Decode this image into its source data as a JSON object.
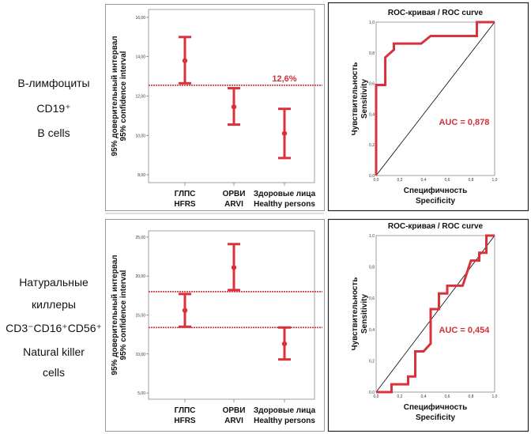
{
  "row_labels": [
    {
      "lines": [
        "В-лимфоциты",
        "CD19⁺",
        "B cells"
      ]
    },
    {
      "lines": [
        "Натуральные",
        "киллеры",
        "CD3⁻CD16⁺CD56⁺",
        "Natural killer",
        "cells"
      ]
    }
  ],
  "colors": {
    "series": "#d9323b",
    "diagonal": "#000000",
    "frame": "#888888"
  },
  "chart_data": [
    {
      "type": "errorbar",
      "ylabel": [
        "95% доверительный интервал",
        "95% confidence interval"
      ],
      "categories": [
        [
          "ГЛПС",
          "HFRS"
        ],
        [
          "ОРВИ",
          "ARVI"
        ],
        [
          "Здоровые лица",
          "Healthy persons"
        ]
      ],
      "ylim": [
        7.6,
        16.4
      ],
      "yticks": [
        8,
        10,
        12,
        14,
        16
      ],
      "ytick_labels": [
        "8,00",
        "10,00",
        "12,00",
        "14,00",
        "16,00"
      ],
      "series": [
        {
          "mean": 13.8,
          "lower": 12.65,
          "upper": 15.0
        },
        {
          "mean": 11.45,
          "lower": 10.55,
          "upper": 12.4
        },
        {
          "mean": 10.1,
          "lower": 8.85,
          "upper": 11.35
        }
      ],
      "reference_lines": [
        12.55
      ],
      "annotation": "12,6%"
    },
    {
      "type": "roc",
      "title": "ROC-кривая / ROC curve",
      "xlabel": [
        "Специфичность",
        "Specificity"
      ],
      "ylabel": [
        "Чувствительность",
        "Sensitivity"
      ],
      "xlim": [
        0,
        1
      ],
      "ylim": [
        0,
        1
      ],
      "tick_labels": [
        "0,0",
        "0,2",
        "0,4",
        "0,6",
        "0,8",
        "1,0"
      ],
      "points": [
        [
          0,
          0
        ],
        [
          0,
          0.59
        ],
        [
          0.077,
          0.59
        ],
        [
          0.077,
          0.77
        ],
        [
          0.15,
          0.82
        ],
        [
          0.15,
          0.86
        ],
        [
          0.38,
          0.86
        ],
        [
          0.46,
          0.91
        ],
        [
          0.85,
          0.91
        ],
        [
          0.85,
          1
        ],
        [
          1,
          1
        ]
      ],
      "auc_label": "AUC = 0,878"
    },
    {
      "type": "errorbar",
      "ylabel": [
        "95% доверительный интервал",
        "95% confidence interval"
      ],
      "categories": [
        [
          "ГЛПС",
          "HFRS"
        ],
        [
          "ОРВИ",
          "ARVI"
        ],
        [
          "Здоровые лица",
          "Healthy persons"
        ]
      ],
      "ylim": [
        4.2,
        25.8
      ],
      "yticks": [
        5,
        10,
        15,
        20,
        25
      ],
      "ytick_labels": [
        "5,00",
        "10,00",
        "15,00",
        "20,00",
        "25,00"
      ],
      "series": [
        {
          "mean": 15.6,
          "lower": 13.5,
          "upper": 17.7
        },
        {
          "mean": 21.1,
          "lower": 18.2,
          "upper": 24.1
        },
        {
          "mean": 11.3,
          "lower": 9.3,
          "upper": 13.4
        }
      ],
      "reference_lines": [
        18.0,
        13.4
      ],
      "annotation": ""
    },
    {
      "type": "roc",
      "title": "ROC-кривая / ROC curve",
      "xlabel": [
        "Специфичность",
        "Specificity"
      ],
      "ylabel": [
        "Чувствительность",
        "Sensitivity"
      ],
      "xlim": [
        0,
        1
      ],
      "ylim": [
        0,
        1
      ],
      "tick_labels": [
        "0,0",
        "0,2",
        "0,4",
        "0,6",
        "0,8",
        "1,0"
      ],
      "points": [
        [
          0,
          0
        ],
        [
          0.13,
          0
        ],
        [
          0.13,
          0.05
        ],
        [
          0.27,
          0.05
        ],
        [
          0.27,
          0.1
        ],
        [
          0.33,
          0.1
        ],
        [
          0.33,
          0.26
        ],
        [
          0.4,
          0.26
        ],
        [
          0.46,
          0.31
        ],
        [
          0.46,
          0.53
        ],
        [
          0.53,
          0.53
        ],
        [
          0.53,
          0.63
        ],
        [
          0.6,
          0.63
        ],
        [
          0.6,
          0.68
        ],
        [
          0.73,
          0.68
        ],
        [
          0.8,
          0.84
        ],
        [
          0.87,
          0.84
        ],
        [
          0.87,
          0.89
        ],
        [
          0.93,
          0.89
        ],
        [
          0.93,
          1
        ],
        [
          1,
          1
        ]
      ],
      "auc_label": "AUC = 0,454"
    }
  ]
}
